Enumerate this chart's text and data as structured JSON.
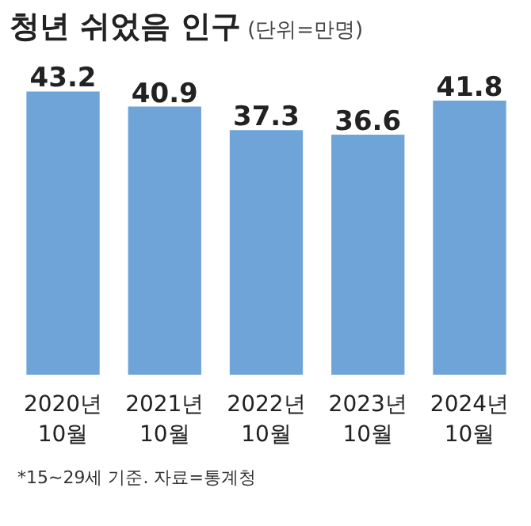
{
  "chart_data": {
    "type": "bar",
    "title": "청년 쉬었음 인구",
    "subtitle": "(단위=만명)",
    "categories": [
      "2020년\n10월",
      "2021년\n10월",
      "2022년\n10월",
      "2023년\n10월",
      "2024년\n10월"
    ],
    "values": [
      43.2,
      40.9,
      37.3,
      36.6,
      41.8
    ],
    "color": "#6fa4d8",
    "data_labels": true,
    "tick_labels": "x",
    "annotations": [
      "*15~29세 기준. 자료=통계청"
    ]
  }
}
